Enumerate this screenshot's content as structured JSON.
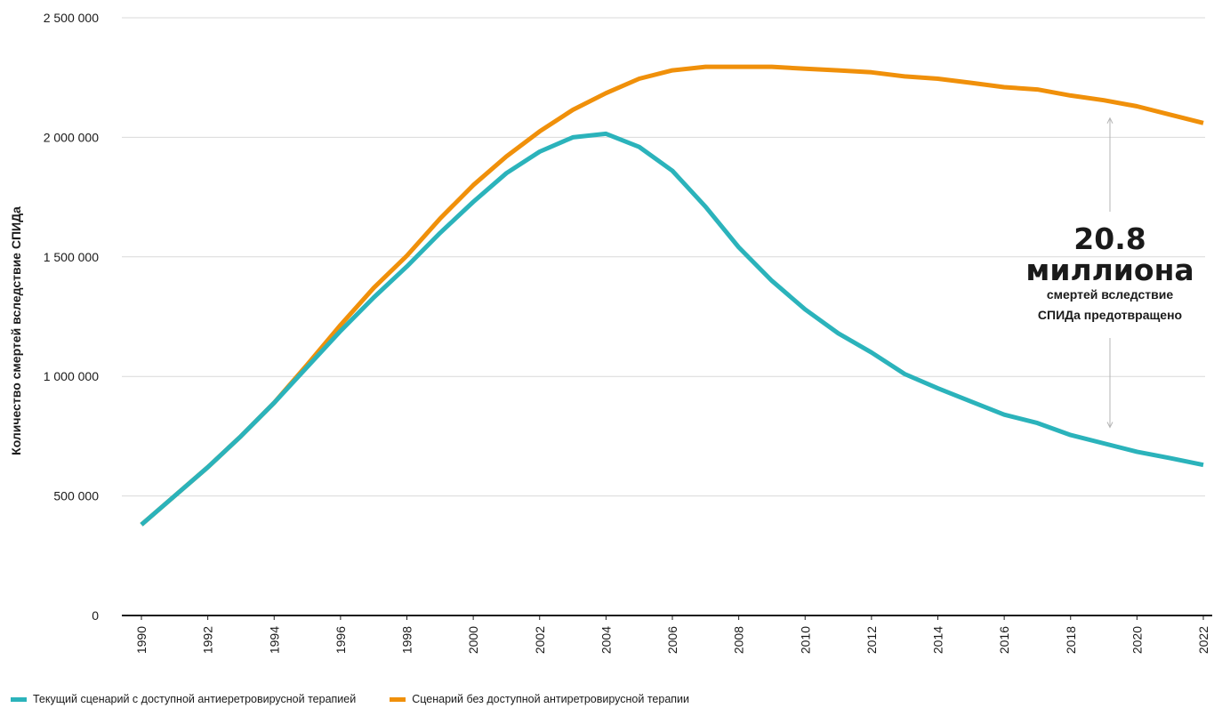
{
  "chart_data": {
    "type": "line",
    "title": "",
    "ylabel": "Количество смертей вследствие СПИДа",
    "xlabel": "",
    "ylim": [
      0,
      2500000
    ],
    "y_ticks": [
      0,
      500000,
      1000000,
      1500000,
      2000000,
      2500000
    ],
    "y_tick_labels": [
      "0",
      "500 000",
      "1 000 000",
      "1 500 000",
      "2 000 000",
      "2 500 000"
    ],
    "x_ticks": [
      1990,
      1992,
      1994,
      1996,
      1998,
      2000,
      2002,
      2004,
      2006,
      2008,
      2010,
      2012,
      2014,
      2016,
      2018,
      2020,
      2022
    ],
    "x": [
      1990,
      1991,
      1992,
      1993,
      1994,
      1995,
      1996,
      1997,
      1998,
      1999,
      2000,
      2001,
      2002,
      2003,
      2004,
      2005,
      2006,
      2007,
      2008,
      2009,
      2010,
      2011,
      2012,
      2013,
      2014,
      2015,
      2016,
      2017,
      2018,
      2019,
      2020,
      2021,
      2022
    ],
    "grid": "horizontal",
    "legend_position": "bottom-left",
    "series": [
      {
        "name": "Текущий сценарий с доступной антиеретровирусной терапией",
        "color": "#2bb3bb",
        "values": [
          380000,
          500000,
          620000,
          750000,
          890000,
          1040000,
          1190000,
          1330000,
          1460000,
          1600000,
          1730000,
          1850000,
          1940000,
          2000000,
          2015000,
          1960000,
          1860000,
          1710000,
          1540000,
          1400000,
          1280000,
          1180000,
          1100000,
          1010000,
          950000,
          895000,
          840000,
          805000,
          755000,
          720000,
          685000,
          658000,
          630000
        ]
      },
      {
        "name": "Сценарий без доступной антиретровирусной терапии",
        "color": "#f0900a",
        "values": [
          380000,
          500000,
          620000,
          750000,
          890000,
          1050000,
          1215000,
          1370000,
          1505000,
          1660000,
          1800000,
          1920000,
          2025000,
          2115000,
          2185000,
          2245000,
          2280000,
          2295000,
          2295000,
          2295000,
          2287000,
          2280000,
          2272000,
          2255000,
          2245000,
          2228000,
          2210000,
          2200000,
          2175000,
          2155000,
          2130000,
          2095000,
          2060000
        ]
      }
    ],
    "annotation": {
      "value": "20.8",
      "unit": "миллиона",
      "line1": "смертей вследствие",
      "line2": "СПИДа предотвращено"
    }
  }
}
